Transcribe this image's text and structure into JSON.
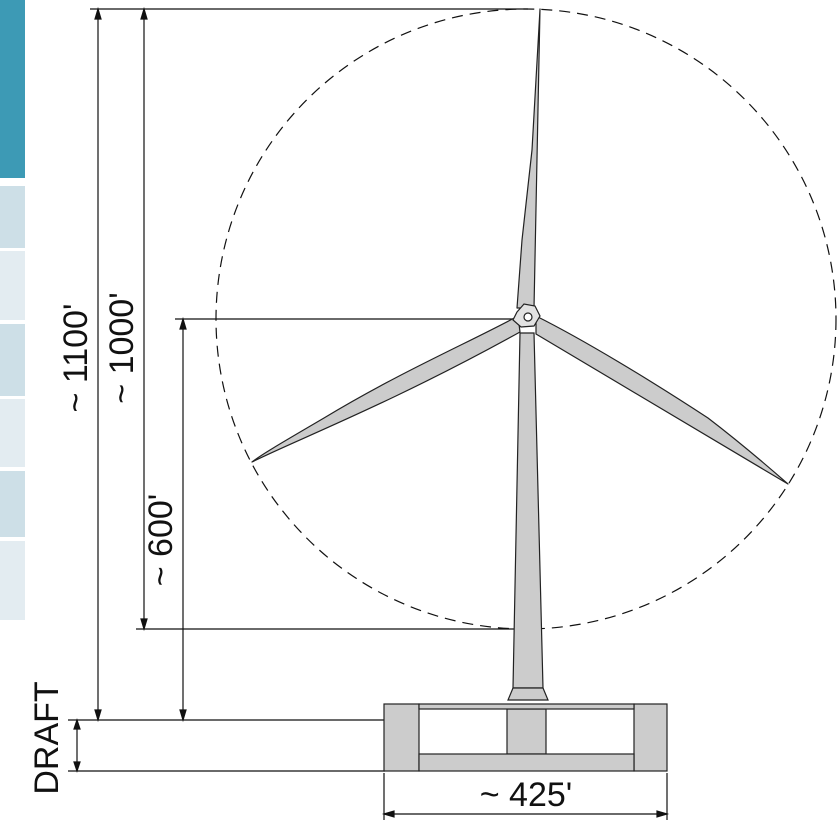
{
  "labels": {
    "total_height": "~ 1100'",
    "tip_height": "~ 1000'",
    "hub_height": "~ 600'",
    "draft": "DRAFT",
    "platform_width": "~ 425'"
  },
  "colors": {
    "sidebar_accent": "#3d9ab5",
    "sidebar_light": "#cddfe7",
    "sidebar_lighter": "#e3ecf1",
    "turbine_fill": "#cccccc",
    "line": "#111111"
  }
}
